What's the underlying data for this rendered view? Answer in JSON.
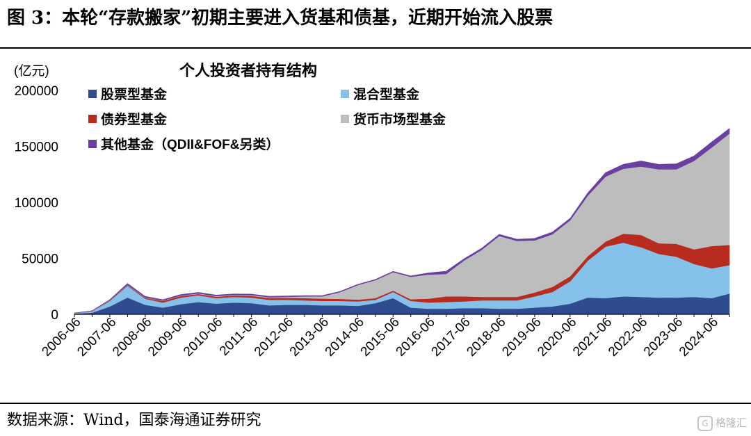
{
  "figure": {
    "title": "图 3：本轮“存款搬家”初期主要进入货基和债基，近期开始流入股票",
    "source": "数据来源：Wind，国泰海通证券研究",
    "watermark": "格隆汇"
  },
  "chart_data": {
    "type": "area",
    "stacked": true,
    "title": "个人投资者持有结构",
    "unit_label": "(亿元)",
    "ylim": [
      0,
      200000
    ],
    "y_ticks": [
      0,
      50000,
      100000,
      150000,
      200000
    ],
    "x_tick_labels": [
      "2006-06",
      "2007-06",
      "2008-06",
      "2009-06",
      "2010-06",
      "2011-06",
      "2012-06",
      "2013-06",
      "2014-06",
      "2015-06",
      "2016-06",
      "2017-06",
      "2018-06",
      "2019-06",
      "2020-06",
      "2021-06",
      "2022-06",
      "2023-06",
      "2024-06"
    ],
    "legend_placement": "top, two columns",
    "grid": false,
    "x": [
      "2006-06",
      "2006-12",
      "2007-06",
      "2007-12",
      "2008-06",
      "2008-12",
      "2009-06",
      "2009-12",
      "2010-06",
      "2010-12",
      "2011-06",
      "2011-12",
      "2012-06",
      "2012-12",
      "2013-06",
      "2013-12",
      "2014-06",
      "2014-12",
      "2015-06",
      "2015-12",
      "2016-06",
      "2016-12",
      "2017-06",
      "2017-12",
      "2018-06",
      "2018-12",
      "2019-06",
      "2019-12",
      "2020-06",
      "2020-12",
      "2021-06",
      "2021-12",
      "2022-06",
      "2022-12",
      "2023-06",
      "2023-12",
      "2024-06",
      "2024-12"
    ],
    "series": [
      {
        "name": "股票型基金",
        "color": "#2e4c8f",
        "values": [
          500,
          1500,
          7000,
          15000,
          8500,
          6000,
          9000,
          11000,
          9500,
          10500,
          10000,
          8000,
          8500,
          8500,
          8000,
          8000,
          7500,
          10000,
          14500,
          6000,
          5000,
          5000,
          5500,
          5500,
          5000,
          5000,
          6000,
          7000,
          9500,
          15000,
          14500,
          16000,
          15500,
          15000,
          15000,
          15500,
          14500,
          18500
        ]
      },
      {
        "name": "混合型基金",
        "color": "#86c1ea",
        "values": [
          300,
          1000,
          5000,
          10500,
          5500,
          4500,
          6000,
          6000,
          5000,
          5000,
          5000,
          5000,
          4500,
          4000,
          4000,
          4000,
          4000,
          3000,
          5500,
          6000,
          5500,
          6000,
          6000,
          7000,
          7500,
          7500,
          10000,
          13000,
          20000,
          33000,
          46000,
          48000,
          44500,
          39000,
          36500,
          29500,
          26500,
          25500
        ]
      },
      {
        "name": "债券型基金",
        "color": "#b82b1f",
        "values": [
          100,
          200,
          400,
          600,
          800,
          1500,
          1400,
          1200,
          1200,
          1300,
          1500,
          1600,
          1800,
          2000,
          2000,
          1800,
          1600,
          1500,
          1200,
          1500,
          3500,
          5000,
          4500,
          3000,
          3000,
          3000,
          3500,
          4500,
          4500,
          4000,
          4500,
          8000,
          11000,
          9500,
          11500,
          13000,
          20000,
          18000
        ]
      },
      {
        "name": "货币市场型基金",
        "color": "#bdbdbd",
        "values": [
          200,
          300,
          300,
          300,
          300,
          300,
          400,
          500,
          600,
          500,
          700,
          700,
          800,
          1500,
          2000,
          6000,
          13000,
          16000,
          16500,
          20000,
          21500,
          20000,
          32000,
          42000,
          54500,
          50000,
          46500,
          47000,
          50000,
          54000,
          58000,
          58000,
          61000,
          66000,
          66500,
          79000,
          88000,
          99500
        ]
      },
      {
        "name": "其他基金（QDII&FOF&另类）",
        "color": "#6b3fa0",
        "values": [
          150,
          200,
          400,
          1200,
          900,
          800,
          900,
          900,
          900,
          900,
          900,
          800,
          800,
          800,
          700,
          700,
          700,
          700,
          700,
          800,
          1500,
          2500,
          1500,
          1500,
          1500,
          1500,
          1800,
          2000,
          1800,
          2500,
          3500,
          4000,
          5000,
          4500,
          5000,
          4500,
          5000,
          4500
        ]
      }
    ]
  }
}
